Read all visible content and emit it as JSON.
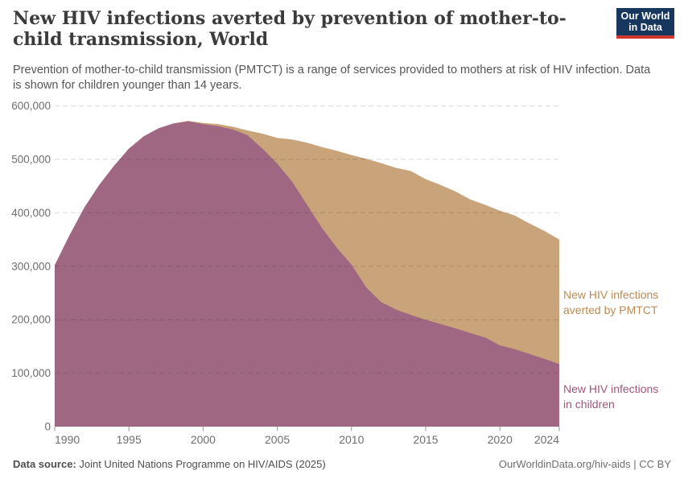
{
  "header": {
    "title": "New HIV infections averted by prevention of mother-to-child transmission, World",
    "subtitle": "Prevention of mother-to-child transmission (PMTCT) is a range of services provided to mothers at risk of HIV infection. Data is shown for children younger than 14 years.",
    "logo": {
      "line1": "Our World",
      "line2": "in Data",
      "bg": "#18375f",
      "accent": "#d0382e"
    }
  },
  "legend": {
    "averted": {
      "line1": "New HIV infections",
      "line2": "averted by PMTCT",
      "color": "#bc8a54"
    },
    "children": {
      "line1": "New HIV infections",
      "line2": "in children",
      "color": "#a2567d"
    }
  },
  "footer": {
    "datasource_label": "Data source:",
    "datasource_value": " Joint United Nations Programme on HIV/AIDS (2025)",
    "link": "OurWorldinData.org/hiv-aids",
    "separator": " | ",
    "license": "CC BY"
  },
  "chart_data": {
    "type": "area",
    "stacked": true,
    "title": "New HIV infections averted by prevention of mother-to-child transmission, World",
    "xlabel": "",
    "ylabel": "",
    "x": [
      1990,
      1991,
      1992,
      1993,
      1994,
      1995,
      1996,
      1997,
      1998,
      1999,
      2000,
      2001,
      2002,
      2003,
      2004,
      2005,
      2006,
      2007,
      2008,
      2009,
      2010,
      2011,
      2012,
      2013,
      2014,
      2015,
      2016,
      2017,
      2018,
      2019,
      2020,
      2021,
      2022,
      2023,
      2024
    ],
    "series": [
      {
        "name": "New HIV infections in children",
        "color": "#a06783",
        "values": [
          302000,
          358000,
          410000,
          452000,
          488000,
          520000,
          543000,
          558000,
          567000,
          571000,
          566000,
          562000,
          556000,
          545000,
          520000,
          492000,
          458000,
          415000,
          372000,
          335000,
          303000,
          260000,
          233000,
          219000,
          209000,
          200000,
          192000,
          184000,
          175000,
          167000,
          152000,
          145000,
          136000,
          127000,
          117000
        ]
      },
      {
        "name": "New HIV infections averted by PMTCT",
        "color": "#c9a47a",
        "values": [
          0,
          0,
          0,
          0,
          0,
          0,
          0,
          0,
          0,
          1000,
          2000,
          4000,
          5000,
          9000,
          28000,
          48000,
          79000,
          116000,
          151000,
          181000,
          205000,
          241000,
          260000,
          265000,
          269000,
          263000,
          260000,
          256000,
          250000,
          248000,
          252000,
          250000,
          244000,
          239000,
          233000
        ]
      }
    ],
    "ylim": [
      0,
      600000
    ],
    "yticks": [
      0,
      100000,
      200000,
      300000,
      400000,
      500000,
      600000
    ],
    "xticks": [
      1990,
      1995,
      2000,
      2005,
      2010,
      2015,
      2020,
      2024
    ],
    "grid": "horizontal-dashed",
    "legend_position": "right"
  }
}
